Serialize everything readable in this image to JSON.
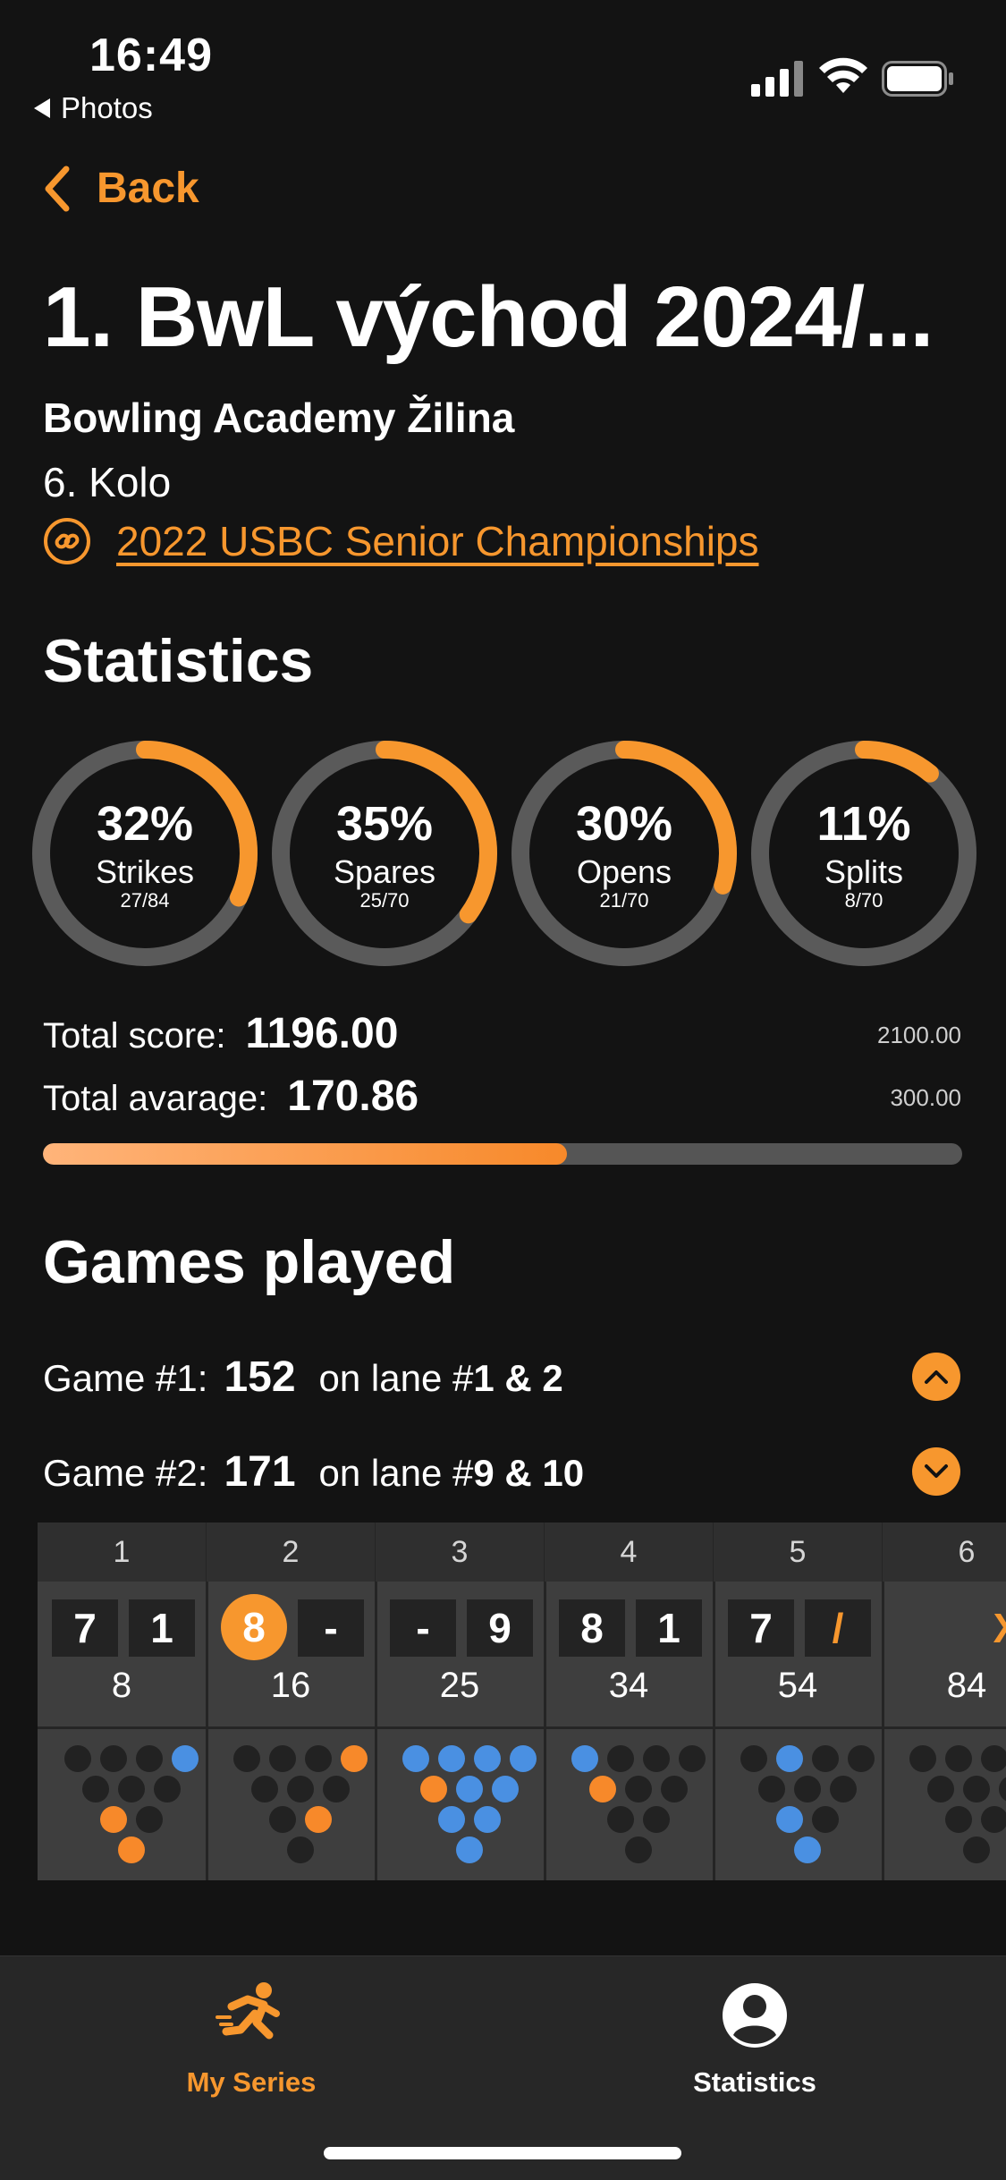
{
  "status": {
    "time": "16:49",
    "back_app": "Photos"
  },
  "nav": {
    "back_label": "Back"
  },
  "header": {
    "title": "1. BwL východ 2024/...",
    "venue": "Bowling Academy Žilina",
    "round": "6. Kolo",
    "link": "2022 USBC Senior Championships"
  },
  "statistics": {
    "heading": "Statistics",
    "rings": [
      {
        "pct": "32%",
        "name": "Strikes",
        "count": "27/84",
        "fraction": 0.32
      },
      {
        "pct": "35%",
        "name": "Spares",
        "count": "25/70",
        "fraction": 0.35
      },
      {
        "pct": "30%",
        "name": "Opens",
        "count": "21/70",
        "fraction": 0.3
      },
      {
        "pct": "11%",
        "name": "Splits",
        "count": "8/70",
        "fraction": 0.11
      }
    ],
    "total_score_label": "Total score:",
    "total_score": "1196.00",
    "total_score_max": "2100.00",
    "total_average_label": "Total avarage:",
    "total_average": "170.86",
    "total_average_max": "300.00",
    "progress_fraction": 0.57,
    "accent_color": "#f7972e"
  },
  "games": {
    "heading": "Games played",
    "list": [
      {
        "label": "Game #1:",
        "score": "152",
        "lane_prefix": "on lane #",
        "lane": "1 & 2",
        "expanded": false,
        "icon": "chevron-up-icon"
      },
      {
        "label": "Game #2:",
        "score": "171",
        "lane_prefix": "on lane #",
        "lane": "9 & 10",
        "expanded": true,
        "icon": "chevron-down-icon"
      }
    ],
    "frames": [
      {
        "num": "1",
        "b1": "7",
        "b2": "1",
        "score": "8",
        "pins": [
          "k",
          "k",
          "k",
          "b",
          "k",
          "k",
          "k",
          "o",
          "k",
          "o"
        ]
      },
      {
        "num": "2",
        "b1": "8",
        "b1_split": true,
        "b2": "-",
        "score": "16",
        "pins": [
          "k",
          "k",
          "k",
          "o",
          "k",
          "k",
          "k",
          "k",
          "o",
          "k"
        ]
      },
      {
        "num": "3",
        "b1": "-",
        "b2": "9",
        "score": "25",
        "pins": [
          "b",
          "b",
          "b",
          "b",
          "o",
          "b",
          "b",
          "b",
          "b",
          "b"
        ]
      },
      {
        "num": "4",
        "b1": "8",
        "b2": "1",
        "score": "34",
        "pins": [
          "b",
          "k",
          "k",
          "k",
          "o",
          "k",
          "k",
          "k",
          "k",
          "k"
        ]
      },
      {
        "num": "5",
        "b1": "7",
        "b2": "/",
        "score": "54",
        "pins": [
          "k",
          "b",
          "k",
          "k",
          "k",
          "k",
          "k",
          "b",
          "k",
          "b"
        ]
      },
      {
        "num": "6",
        "b1": "",
        "b2": "X",
        "score": "84",
        "pins": [
          "k",
          "k",
          "k",
          "k",
          "k",
          "k",
          "k",
          "k",
          "k",
          "k"
        ]
      }
    ]
  },
  "tabbar": {
    "tabs": [
      {
        "label": "My Series",
        "icon": "running-person-icon",
        "active": true
      },
      {
        "label": "Statistics",
        "icon": "person-circle-icon",
        "active": false
      }
    ]
  }
}
